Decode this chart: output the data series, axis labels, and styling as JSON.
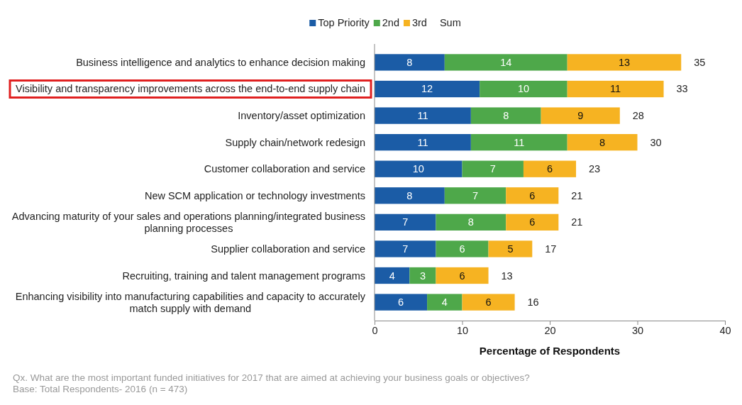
{
  "chart_data": {
    "type": "bar",
    "orientation": "horizontal",
    "stacked": true,
    "data_labels": true,
    "legend": "top",
    "xlabel": "Percentage of Respondents",
    "categories": [
      "Business intelligence and analytics to enhance decision making",
      "Visibility and transparency improvements across the end-to-end supply chain",
      "Inventory/asset optimization",
      "Supply chain/network redesign",
      "Customer collaboration and service",
      "New SCM application or technology investments",
      "Advancing maturity of your sales and operations planning/integrated business planning processes",
      "Supplier collaboration and service",
      "Recruiting, training and talent management programs",
      "Enhancing visibility into manufacturing capabilities and capacity to accurately match supply with demand"
    ],
    "series": [
      {
        "name": "Top Priority",
        "color": "#1b5ca6",
        "values": [
          8,
          12,
          11,
          11,
          10,
          8,
          7,
          7,
          4,
          6
        ]
      },
      {
        "name": "2nd",
        "color": "#4ea84a",
        "values": [
          14,
          10,
          8,
          11,
          7,
          7,
          8,
          6,
          3,
          4
        ]
      },
      {
        "name": "3rd",
        "color": "#f6b322",
        "values": [
          13,
          11,
          9,
          8,
          6,
          6,
          6,
          5,
          6,
          6
        ]
      }
    ],
    "totals": [
      "35",
      "33",
      "28",
      "30",
      "23",
      "21",
      "21",
      "17",
      "13",
      "16"
    ],
    "xlim": [
      0,
      40
    ],
    "xticks": [
      0,
      10,
      20,
      30,
      40
    ],
    "annotations": [
      "Sum",
      "Qx. What are the most important funded initiatives for 2017 that are aimed at achieving your business goals or objectives?",
      "Base: Total Respondents- 2016  (n = 473)"
    ]
  }
}
